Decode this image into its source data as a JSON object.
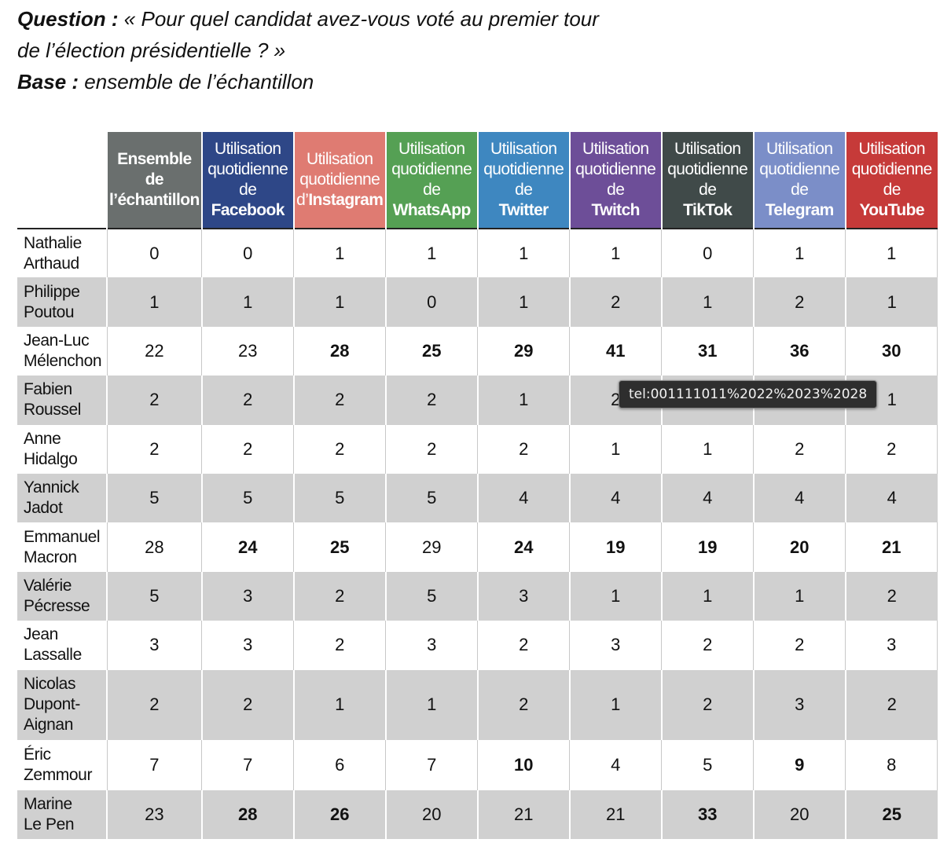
{
  "question": {
    "label": "Question :",
    "text": "« Pour quel candidat avez-vous voté au premier tour",
    "text2": "de l’élection présidentielle ? »",
    "base_label": "Base :",
    "base_text": "ensemble de l’échantillon"
  },
  "columns": [
    {
      "pre": [
        "Ensemble",
        "de",
        "l’échantillon"
      ],
      "plat": "",
      "color": "#6a6f6e",
      "bold_pre": true
    },
    {
      "pre": [
        "Utilisation",
        "quotidienne",
        "de"
      ],
      "plat": "Facebook",
      "color": "#2e4787"
    },
    {
      "pre": [
        "Utilisation",
        "quotidienne",
        "d’"
      ],
      "plat": "Instagram",
      "color": "#df7b72",
      "inline": true
    },
    {
      "pre": [
        "Utilisation",
        "quotidienne",
        "de"
      ],
      "plat": "WhatsApp",
      "color": "#55a054"
    },
    {
      "pre": [
        "Utilisation",
        "quotidienne",
        "de"
      ],
      "plat": "Twitter",
      "color": "#3e87c0"
    },
    {
      "pre": [
        "Utilisation",
        "quotidienne",
        "de"
      ],
      "plat": "Twitch",
      "color": "#6d4e98"
    },
    {
      "pre": [
        "Utilisation",
        "quotidienne",
        "de"
      ],
      "plat": "TikTok",
      "color": "#404a49"
    },
    {
      "pre": [
        "Utilisation",
        "quotidienne",
        "de"
      ],
      "plat": "Telegram",
      "color": "#7b8ec8"
    },
    {
      "pre": [
        "Utilisation",
        "quotidienne",
        "de"
      ],
      "plat": "YouTube",
      "color": "#c63a39"
    }
  ],
  "rows": [
    {
      "name": [
        "Nathalie",
        "Arthaud"
      ],
      "values": [
        "0",
        "0",
        "1",
        "1",
        "1",
        "1",
        "0",
        "1",
        "1"
      ],
      "bold": []
    },
    {
      "name": [
        "Philippe",
        "Poutou"
      ],
      "values": [
        "1",
        "1",
        "1",
        "0",
        "1",
        "2",
        "1",
        "2",
        "1"
      ],
      "bold": []
    },
    {
      "name": [
        "Jean-Luc",
        "Mélenchon"
      ],
      "values": [
        "22",
        "23",
        "28",
        "25",
        "29",
        "41",
        "31",
        "36",
        "30"
      ],
      "bold": [
        2,
        3,
        4,
        5,
        6,
        7,
        8
      ]
    },
    {
      "name": [
        "Fabien",
        "Roussel"
      ],
      "values": [
        "2",
        "2",
        "2",
        "2",
        "1",
        "2",
        "",
        "",
        "1"
      ],
      "bold": []
    },
    {
      "name": [
        "Anne",
        "Hidalgo"
      ],
      "values": [
        "2",
        "2",
        "2",
        "2",
        "2",
        "1",
        "1",
        "2",
        "2"
      ],
      "bold": []
    },
    {
      "name": [
        "Yannick",
        "Jadot"
      ],
      "values": [
        "5",
        "5",
        "5",
        "5",
        "4",
        "4",
        "4",
        "4",
        "4"
      ],
      "bold": []
    },
    {
      "name": [
        "Emmanuel",
        "Macron"
      ],
      "values": [
        "28",
        "24",
        "25",
        "29",
        "24",
        "19",
        "19",
        "20",
        "21"
      ],
      "bold": [
        1,
        2,
        4,
        5,
        6,
        7,
        8
      ]
    },
    {
      "name": [
        "Valérie",
        "Pécresse"
      ],
      "values": [
        "5",
        "3",
        "2",
        "5",
        "3",
        "1",
        "1",
        "1",
        "2"
      ],
      "bold": []
    },
    {
      "name": [
        "Jean",
        "Lassalle"
      ],
      "values": [
        "3",
        "3",
        "2",
        "3",
        "2",
        "3",
        "2",
        "2",
        "3"
      ],
      "bold": []
    },
    {
      "name": [
        "Nicolas",
        "Dupont-",
        "Aignan"
      ],
      "values": [
        "2",
        "2",
        "1",
        "1",
        "2",
        "1",
        "2",
        "3",
        "2"
      ],
      "bold": []
    },
    {
      "name": [
        "Éric",
        "Zemmour"
      ],
      "values": [
        "7",
        "7",
        "6",
        "7",
        "10",
        "4",
        "5",
        "9",
        "8"
      ],
      "bold": [
        4,
        7
      ]
    },
    {
      "name": [
        "Marine",
        "Le Pen"
      ],
      "values": [
        "23",
        "28",
        "26",
        "20",
        "21",
        "21",
        "33",
        "20",
        "25"
      ],
      "bold": [
        1,
        2,
        6,
        8
      ]
    }
  ],
  "tooltip": {
    "text": "tel:001111011%2022%2023%2028"
  }
}
